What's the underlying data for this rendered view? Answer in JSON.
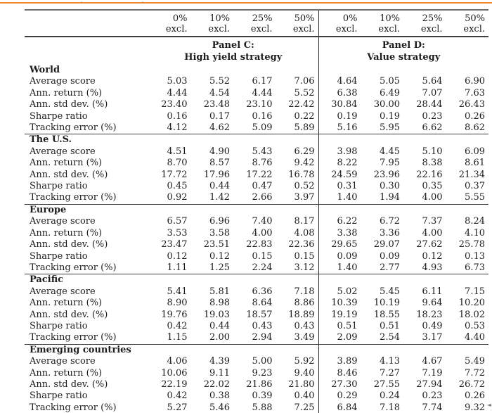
{
  "page": {
    "accent_color": "#ee8a2c",
    "artifact_left_tick": "`",
    "artifact_right_tick": "´",
    "corner_mark": "◄"
  },
  "table": {
    "excl_label": "excl.",
    "col_pcts": [
      "0%",
      "10%",
      "25%",
      "50%",
      "0%",
      "10%",
      "25%",
      "50%"
    ],
    "panels": [
      {
        "line1": "Panel C:",
        "line2": "High yield strategy"
      },
      {
        "line1": "Panel D:",
        "line2": "Value strategy"
      }
    ],
    "sections": [
      {
        "name": "World",
        "rows": [
          {
            "label": "Average score",
            "values": [
              "5.03",
              "5.52",
              "6.17",
              "7.06",
              "4.64",
              "5.05",
              "5.64",
              "6.90"
            ]
          },
          {
            "label": "Ann. return (%)",
            "values": [
              "4.44",
              "4.54",
              "4.44",
              "5.52",
              "6.38",
              "6.49",
              "7.07",
              "7.63"
            ]
          },
          {
            "label": "Ann. std dev. (%)",
            "values": [
              "23.40",
              "23.48",
              "23.10",
              "22.42",
              "30.84",
              "30.00",
              "28.44",
              "26.43"
            ]
          },
          {
            "label": "Sharpe ratio",
            "values": [
              "0.16",
              "0.17",
              "0.16",
              "0.22",
              "0.19",
              "0.19",
              "0.23",
              "0.26"
            ]
          },
          {
            "label": "Tracking error (%)",
            "values": [
              "4.12",
              "4.62",
              "5.09",
              "5.89",
              "5.16",
              "5.95",
              "6.62",
              "8.62"
            ]
          }
        ]
      },
      {
        "name": "The U.S.",
        "rows": [
          {
            "label": "Average score",
            "values": [
              "4.51",
              "4.90",
              "5.43",
              "6.29",
              "3.98",
              "4.45",
              "5.10",
              "6.09"
            ]
          },
          {
            "label": "Ann. return (%)",
            "values": [
              "8.70",
              "8.57",
              "8.76",
              "9.42",
              "8.22",
              "7.95",
              "8.38",
              "8.61"
            ]
          },
          {
            "label": "Ann. std dev. (%)",
            "values": [
              "17.72",
              "17.96",
              "17.22",
              "16.78",
              "24.59",
              "23.96",
              "22.16",
              "21.34"
            ]
          },
          {
            "label": "Sharpe ratio",
            "values": [
              "0.45",
              "0.44",
              "0.47",
              "0.52",
              "0.31",
              "0.30",
              "0.35",
              "0.37"
            ]
          },
          {
            "label": "Tracking error (%)",
            "values": [
              "0.92",
              "1.42",
              "2.66",
              "3.97",
              "1.40",
              "1.94",
              "4.00",
              "5.55"
            ]
          }
        ]
      },
      {
        "name": "Europe",
        "rows": [
          {
            "label": "Average score",
            "values": [
              "6.57",
              "6.96",
              "7.40",
              "8.17",
              "6.22",
              "6.72",
              "7.37",
              "8.24"
            ]
          },
          {
            "label": "Ann. return (%)",
            "values": [
              "3.53",
              "3.58",
              "4.00",
              "4.08",
              "3.38",
              "3.36",
              "4.00",
              "4.10"
            ]
          },
          {
            "label": "Ann. std dev. (%)",
            "values": [
              "23.47",
              "23.51",
              "22.83",
              "22.36",
              "29.65",
              "29.07",
              "27.62",
              "25.78"
            ]
          },
          {
            "label": "Sharpe ratio",
            "values": [
              "0.12",
              "0.12",
              "0.15",
              "0.15",
              "0.09",
              "0.09",
              "0.12",
              "0.13"
            ]
          },
          {
            "label": "Tracking error (%)",
            "values": [
              "1.11",
              "1.25",
              "2.24",
              "3.12",
              "1.40",
              "2.77",
              "4.93",
              "6.73"
            ]
          }
        ]
      },
      {
        "name": "Pacific",
        "rows": [
          {
            "label": "Average score",
            "values": [
              "5.41",
              "5.81",
              "6.36",
              "7.18",
              "5.02",
              "5.45",
              "6.11",
              "7.15"
            ]
          },
          {
            "label": "Ann. return (%)",
            "values": [
              "8.90",
              "8.98",
              "8.64",
              "8.86",
              "10.39",
              "10.19",
              "9.64",
              "10.20"
            ]
          },
          {
            "label": "Ann. std dev. (%)",
            "values": [
              "19.76",
              "19.03",
              "18.57",
              "18.89",
              "19.19",
              "18.55",
              "18.23",
              "18.02"
            ]
          },
          {
            "label": "Sharpe ratio",
            "values": [
              "0.42",
              "0.44",
              "0.43",
              "0.43",
              "0.51",
              "0.51",
              "0.49",
              "0.53"
            ]
          },
          {
            "label": "Tracking error (%)",
            "values": [
              "1.15",
              "2.00",
              "2.94",
              "3.49",
              "2.09",
              "2.54",
              "3.17",
              "4.40"
            ]
          }
        ]
      },
      {
        "name": "Emerging countries",
        "rows": [
          {
            "label": "Average score",
            "values": [
              "4.06",
              "4.39",
              "5.00",
              "5.92",
              "3.89",
              "4.13",
              "4.67",
              "5.49"
            ]
          },
          {
            "label": "Ann. return (%)",
            "values": [
              "10.06",
              "9.11",
              "9.23",
              "9.40",
              "8.46",
              "7.27",
              "7.19",
              "7.72"
            ]
          },
          {
            "label": "Ann. std dev. (%)",
            "values": [
              "22.19",
              "22.02",
              "21.86",
              "21.80",
              "27.30",
              "27.55",
              "27.94",
              "26.72"
            ]
          },
          {
            "label": "Sharpe ratio",
            "values": [
              "0.42",
              "0.38",
              "0.39",
              "0.40",
              "0.29",
              "0.24",
              "0.23",
              "0.26"
            ]
          },
          {
            "label": "Tracking error (%)",
            "values": [
              "5.27",
              "5.46",
              "5.88",
              "7.25",
              "6.84",
              "7.18",
              "7.74",
              "9.32"
            ]
          }
        ]
      }
    ]
  }
}
